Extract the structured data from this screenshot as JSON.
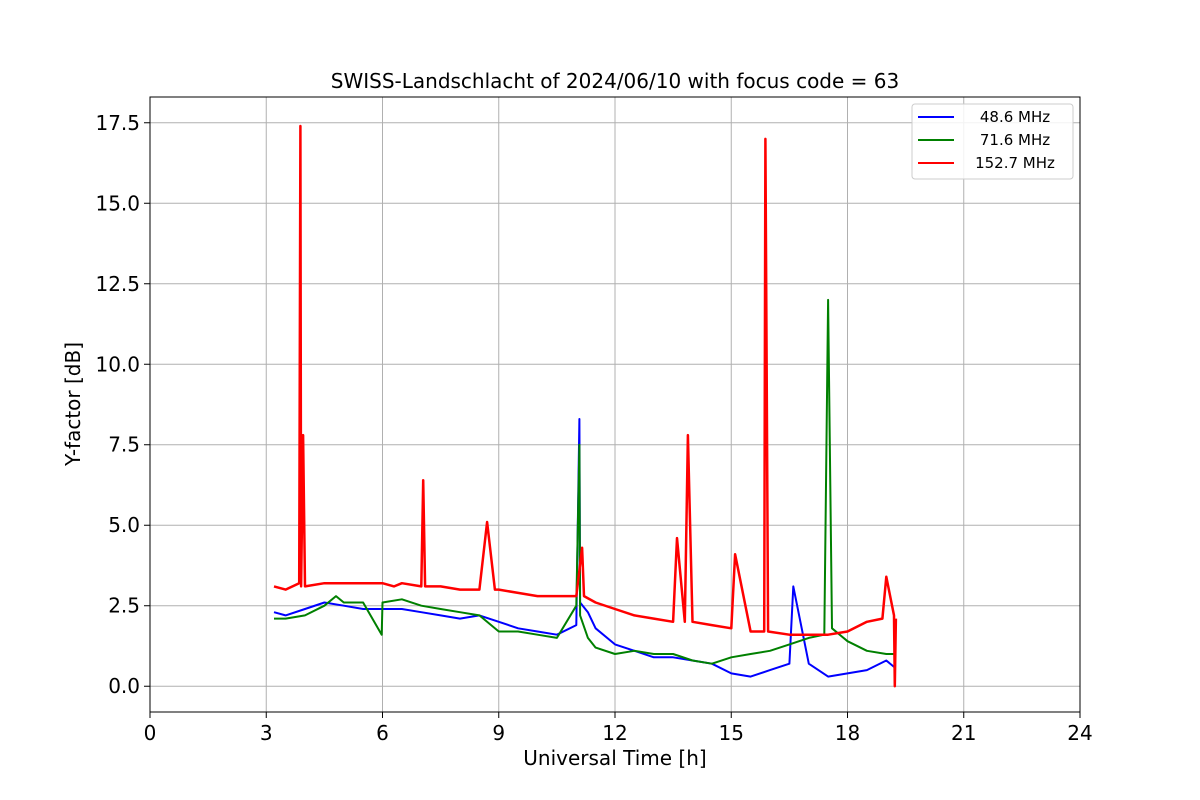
{
  "chart_data": {
    "type": "line",
    "title": "SWISS-Landschlacht of 2024/06/10 with focus code = 63",
    "xlabel": "Universal Time [h]",
    "ylabel": "Y-factor [dB]",
    "xlim": [
      0,
      24
    ],
    "ylim": [
      -0.8,
      18.3
    ],
    "xticks": [
      0,
      3,
      6,
      9,
      12,
      15,
      18,
      21,
      24
    ],
    "xtick_labels": [
      "0",
      "3",
      "6",
      "9",
      "12",
      "15",
      "18",
      "21",
      "24"
    ],
    "yticks": [
      0,
      2.5,
      5,
      7.5,
      10,
      12.5,
      15,
      17.5
    ],
    "ytick_labels": [
      "0.0",
      "2.5",
      "5.0",
      "7.5",
      "10.0",
      "12.5",
      "15.0",
      "17.5"
    ],
    "grid": true,
    "legend_position": "top-right",
    "series": [
      {
        "name": "48.6 MHz",
        "color": "#0000ff",
        "x": [
          3.2,
          3.5,
          4.0,
          4.5,
          5.0,
          5.5,
          6.0,
          6.5,
          7.0,
          7.5,
          8.0,
          8.5,
          9.0,
          9.5,
          10.0,
          10.5,
          11.0,
          11.08,
          11.1,
          11.3,
          11.5,
          12.0,
          12.5,
          13.0,
          13.5,
          14.0,
          14.5,
          15.0,
          15.5,
          16.0,
          16.5,
          16.6,
          17.0,
          17.5,
          18.0,
          18.5,
          19.0,
          19.2
        ],
        "y": [
          2.3,
          2.2,
          2.4,
          2.6,
          2.5,
          2.4,
          2.4,
          2.4,
          2.3,
          2.2,
          2.1,
          2.2,
          2.0,
          1.8,
          1.7,
          1.6,
          1.9,
          8.3,
          2.6,
          2.3,
          1.8,
          1.3,
          1.1,
          0.9,
          0.9,
          0.8,
          0.7,
          0.4,
          0.3,
          0.5,
          0.7,
          3.1,
          0.7,
          0.3,
          0.4,
          0.5,
          0.8,
          0.6
        ]
      },
      {
        "name": "71.6 MHz",
        "color": "#008000",
        "x": [
          3.2,
          3.5,
          4.0,
          4.5,
          4.8,
          5.0,
          5.5,
          5.98,
          6.0,
          6.5,
          7.0,
          7.5,
          8.0,
          8.5,
          9.0,
          9.5,
          10.0,
          10.5,
          11.0,
          11.08,
          11.1,
          11.3,
          11.5,
          12.0,
          12.5,
          13.0,
          13.5,
          14.0,
          14.5,
          15.0,
          15.5,
          16.0,
          16.5,
          17.0,
          17.4,
          17.5,
          17.6,
          18.0,
          18.5,
          19.0,
          19.2
        ],
        "y": [
          2.1,
          2.1,
          2.2,
          2.5,
          2.8,
          2.6,
          2.6,
          1.6,
          2.6,
          2.7,
          2.5,
          2.4,
          2.3,
          2.2,
          1.7,
          1.7,
          1.6,
          1.5,
          2.5,
          7.5,
          2.2,
          1.5,
          1.2,
          1.0,
          1.1,
          1.0,
          1.0,
          0.8,
          0.7,
          0.9,
          1.0,
          1.1,
          1.3,
          1.5,
          1.6,
          12.0,
          1.8,
          1.4,
          1.1,
          1.0,
          1.0
        ]
      },
      {
        "name": "152.7 MHz",
        "color": "#ff0000",
        "x": [
          3.2,
          3.5,
          3.85,
          3.88,
          3.9,
          3.95,
          4.0,
          4.5,
          5.0,
          5.5,
          6.0,
          6.3,
          6.5,
          7.0,
          7.05,
          7.1,
          7.5,
          8.0,
          8.5,
          8.7,
          8.9,
          9.0,
          9.5,
          10.0,
          10.5,
          11.0,
          11.15,
          11.2,
          11.5,
          12.0,
          12.5,
          13.0,
          13.5,
          13.6,
          13.8,
          13.88,
          14.0,
          14.5,
          15.0,
          15.1,
          15.5,
          15.85,
          15.88,
          15.95,
          16.5,
          17.0,
          17.5,
          18.0,
          18.5,
          18.9,
          19.0,
          19.2,
          19.22,
          19.25
        ],
        "y": [
          3.1,
          3.0,
          3.2,
          17.4,
          3.1,
          7.8,
          3.1,
          3.2,
          3.2,
          3.2,
          3.2,
          3.1,
          3.2,
          3.1,
          6.4,
          3.1,
          3.1,
          3.0,
          3.0,
          5.1,
          3.0,
          3.0,
          2.9,
          2.8,
          2.8,
          2.8,
          4.3,
          2.8,
          2.6,
          2.4,
          2.2,
          2.1,
          2.0,
          4.6,
          2.0,
          7.8,
          2.0,
          1.9,
          1.8,
          4.1,
          1.7,
          1.7,
          17.0,
          1.7,
          1.6,
          1.6,
          1.6,
          1.7,
          2.0,
          2.1,
          3.4,
          2.2,
          0.0,
          2.1
        ]
      }
    ]
  }
}
